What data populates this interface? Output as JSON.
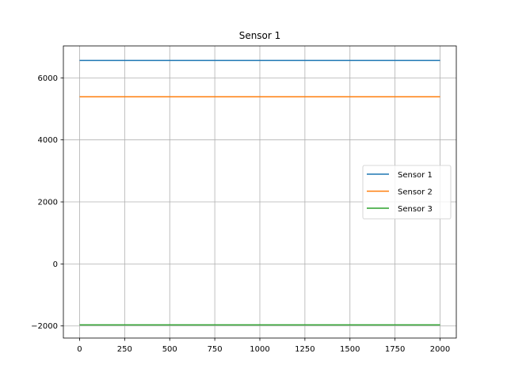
{
  "chart_data": {
    "type": "line",
    "title": "Sensor 1",
    "xlabel": "",
    "ylabel": "",
    "xlim": [
      -90,
      2090
    ],
    "ylim": [
      -2390,
      7030
    ],
    "xticks": [
      0,
      250,
      500,
      750,
      1000,
      1250,
      1500,
      1750,
      2000
    ],
    "yticks": [
      -2000,
      0,
      2000,
      4000,
      6000
    ],
    "ytick_labels": [
      "−2000",
      "0",
      "2000",
      "4000",
      "6000"
    ],
    "grid": true,
    "legend_position": "center-right",
    "series": [
      {
        "name": "Sensor 1",
        "color": "#1f77b4",
        "x": [
          0,
          2000
        ],
        "y": [
          6560,
          6560
        ]
      },
      {
        "name": "Sensor 2",
        "color": "#ff7f0e",
        "x": [
          0,
          2000
        ],
        "y": [
          5390,
          5390
        ]
      },
      {
        "name": "Sensor 3",
        "color": "#2ca02c",
        "x": [
          0,
          2000
        ],
        "y": [
          -1965,
          -1965
        ]
      }
    ]
  }
}
